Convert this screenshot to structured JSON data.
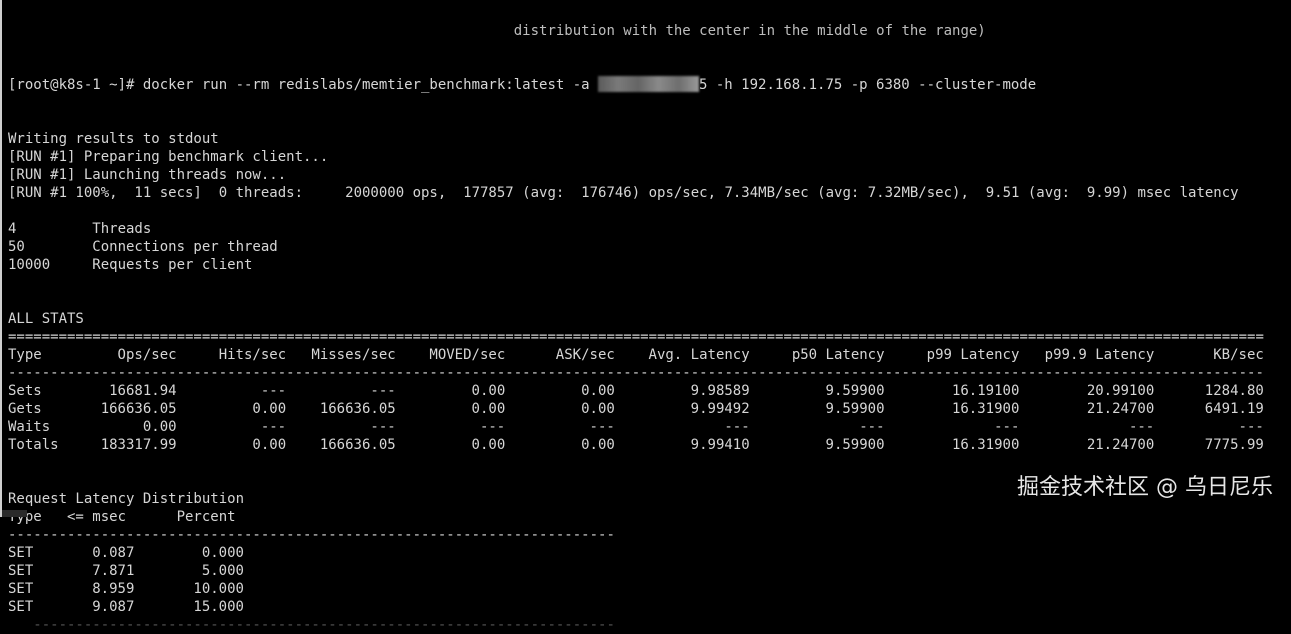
{
  "terminal": {
    "partial_top_line": "                                                            distribution with the center in the middle of the range)",
    "command": {
      "prompt_and_cmd": "[root@k8s-1 ~]# docker run --rm redislabs/memtier_benchmark:latest -a ",
      "after_redacted": "5 -h 192.168.1.75 -p 6380 --cluster-mode"
    },
    "output_lines": [
      "Writing results to stdout",
      "[RUN #1] Preparing benchmark client...",
      "[RUN #1] Launching threads now...",
      "[RUN #1 100%,  11 secs]  0 threads:     2000000 ops,  177857 (avg:  176746) ops/sec, 7.34MB/sec (avg: 7.32MB/sec),  9.51 (avg:  9.99) msec latency",
      "",
      "4         Threads",
      "50        Connections per thread",
      "10000     Requests per client",
      "",
      "",
      "ALL STATS"
    ],
    "all_stats": {
      "headers": [
        "Type",
        "Ops/sec",
        "Hits/sec",
        "Misses/sec",
        "MOVED/sec",
        "ASK/sec",
        "Avg. Latency",
        "p50 Latency",
        "p99 Latency",
        "p99.9 Latency",
        "KB/sec"
      ],
      "rows": [
        [
          "Sets",
          "16681.94",
          "---",
          "---",
          "0.00",
          "0.00",
          "9.98589",
          "9.59900",
          "16.19100",
          "20.99100",
          "1284.80"
        ],
        [
          "Gets",
          "166636.05",
          "0.00",
          "166636.05",
          "0.00",
          "0.00",
          "9.99492",
          "9.59900",
          "16.31900",
          "21.24700",
          "6491.19"
        ],
        [
          "Waits",
          "0.00",
          "---",
          "---",
          "---",
          "---",
          "---",
          "---",
          "---",
          "---",
          "---"
        ],
        [
          "Totals",
          "183317.99",
          "0.00",
          "166636.05",
          "0.00",
          "0.00",
          "9.99410",
          "9.59900",
          "16.31900",
          "21.24700",
          "7775.99"
        ]
      ]
    },
    "latency_distribution": {
      "title": "Request Latency Distribution",
      "headers": [
        "Type",
        "<= msec",
        "Percent"
      ],
      "rows": [
        [
          "SET",
          "0.087",
          "0.000"
        ],
        [
          "SET",
          "7.871",
          "5.000"
        ],
        [
          "SET",
          "8.959",
          "10.000"
        ],
        [
          "SET",
          "9.087",
          "15.000"
        ]
      ]
    }
  },
  "watermark": "掘金技术社区 @ 乌日尼乐"
}
